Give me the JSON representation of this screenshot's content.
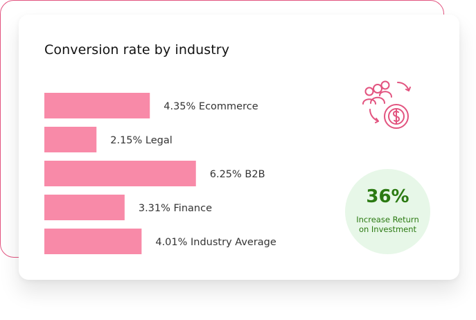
{
  "chart_data": {
    "type": "bar",
    "title": "Conversion rate by industry",
    "orientation": "horizontal",
    "categories": [
      "Ecommerce",
      "Legal",
      "B2B",
      "Finance",
      "Industry Average"
    ],
    "values": [
      4.35,
      2.15,
      6.25,
      3.31,
      4.01
    ],
    "labels": [
      "4.35% Ecommerce",
      "2.15% Legal",
      "6.25% B2B",
      "3.31% Finance",
      "4.01% Industry Average"
    ],
    "bar_color": "#f88aa8",
    "grid": false,
    "legend": false
  },
  "roi": {
    "value": "36%",
    "label": "Increase Return\non Investment",
    "badge_color": "#e7f7e8",
    "text_color": "#2b7a12"
  },
  "icon": {
    "name": "roi-users-dollar-cycle-icon",
    "color": "#e2537f"
  },
  "frame": {
    "accent_color": "#e2537f"
  }
}
